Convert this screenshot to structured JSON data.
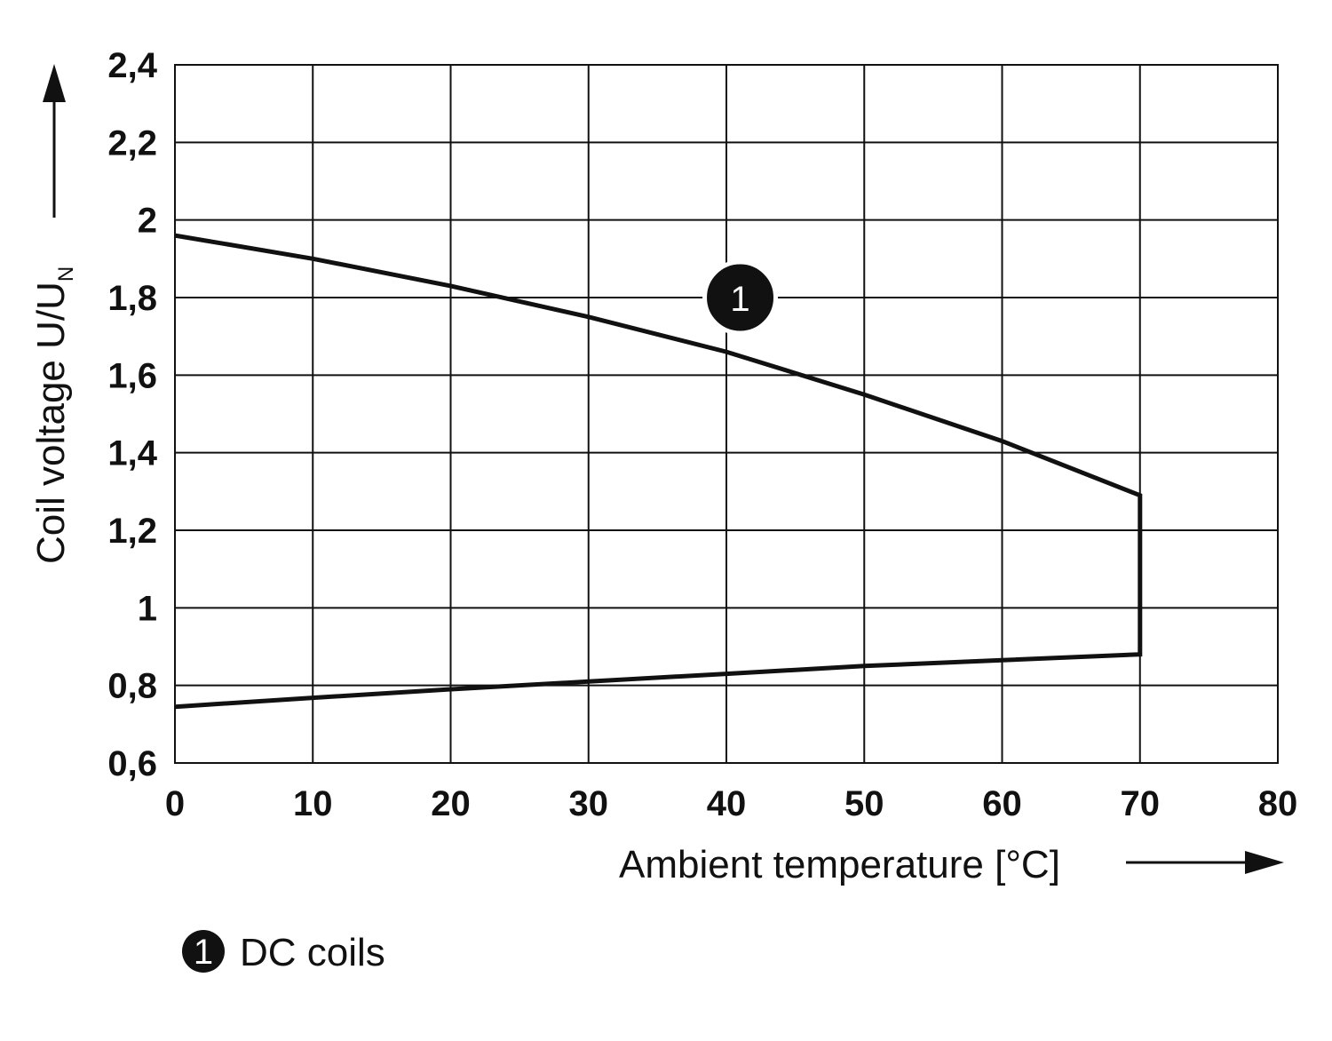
{
  "chart_data": {
    "type": "line",
    "xlabel": "Ambient temperature [°C]",
    "ylabel_main": "Coil voltage U/U",
    "ylabel_sub": "N",
    "xlim": [
      0,
      80
    ],
    "ylim": [
      0.6,
      2.4
    ],
    "x_ticks": [
      0,
      10,
      20,
      30,
      40,
      50,
      60,
      70,
      80
    ],
    "x_tick_labels": [
      "0",
      "10",
      "20",
      "30",
      "40",
      "50",
      "60",
      "70",
      "80"
    ],
    "y_ticks": [
      0.6,
      0.8,
      1.0,
      1.2,
      1.4,
      1.6,
      1.8,
      2.0,
      2.2,
      2.4
    ],
    "y_tick_labels": [
      "0,6",
      "0,8",
      "1",
      "1,2",
      "1,4",
      "1,6",
      "1,8",
      "2",
      "2,2",
      "2,4"
    ],
    "grid": true,
    "series": [
      {
        "name": "DC coils",
        "marker_label": "1",
        "x": [
          0,
          10,
          20,
          30,
          40,
          50,
          60,
          70,
          70,
          60,
          50,
          40,
          30,
          20,
          10,
          0
        ],
        "y": [
          1.96,
          1.9,
          1.83,
          1.75,
          1.66,
          1.55,
          1.43,
          1.29,
          0.88,
          0.865,
          0.85,
          0.83,
          0.81,
          0.79,
          0.768,
          0.745
        ]
      }
    ],
    "annotation": {
      "label": "1",
      "x": 41,
      "y": 1.8
    },
    "legend": [
      {
        "marker": "1",
        "text": "DC coils"
      }
    ]
  }
}
